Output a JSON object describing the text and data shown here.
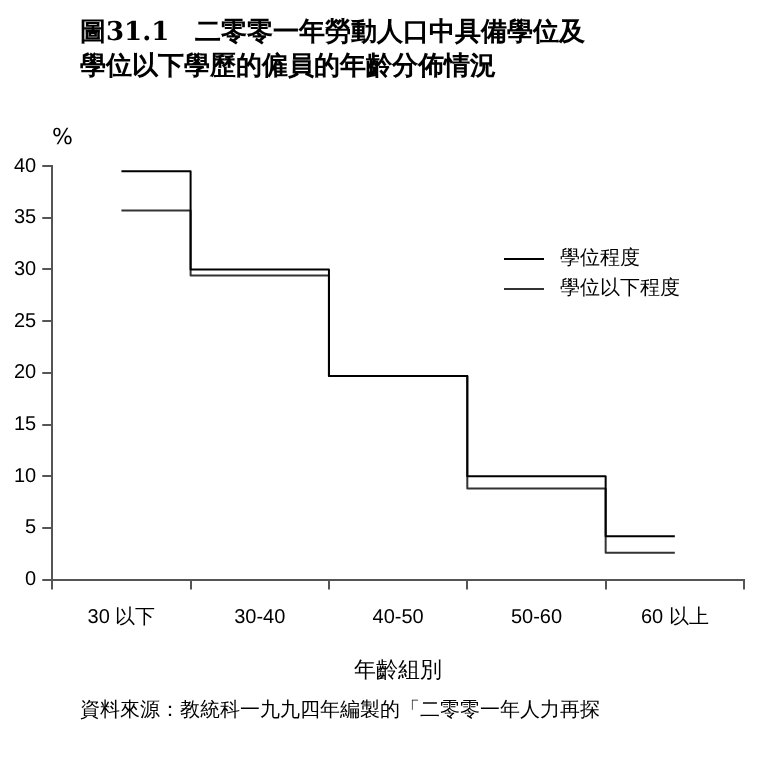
{
  "chart_data": {
    "type": "step",
    "title": "圖31.1　二零零一年勞動人口中具備學位及學位以下學歷的僱員的年齡分佈情況",
    "ylabel": "%",
    "xlabel": "年齡組別",
    "categories": [
      "30 以下",
      "30-40",
      "40-50",
      "50-60",
      "60 以上"
    ],
    "series": [
      {
        "name": "學位程度",
        "color": "#000000",
        "values": [
          39.5,
          30.0,
          19.7,
          10.0,
          4.2
        ]
      },
      {
        "name": "學位以下程度",
        "color": "#333333",
        "values": [
          35.7,
          29.4,
          19.7,
          8.8,
          2.6
        ]
      }
    ],
    "ylim": [
      0,
      40
    ],
    "yticks": [
      0,
      5,
      10,
      15,
      20,
      25,
      30,
      35,
      40
    ],
    "grid": false,
    "legend": "top right",
    "annotations": [
      "資料來源：教統科一九九四年編製的「二零零一年人力再探"
    ]
  }
}
